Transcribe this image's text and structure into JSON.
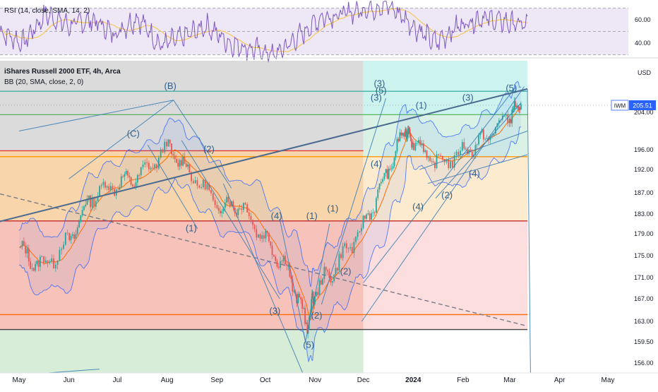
{
  "rsi_panel": {
    "legend": "RSI (14, close, SMA, 14, 2)",
    "ticks": [
      "60.00",
      "40.00"
    ],
    "tick_values": [
      60,
      40
    ],
    "bands": [
      70,
      30
    ],
    "colors": {
      "rsi": "#7e57c2",
      "sma": "#f5c64f",
      "band_fill": "#ede7f6"
    }
  },
  "price_panel": {
    "legend_title": "iShares Russell 2000 ETF, 4h, Arca",
    "legend_bb": "BB (20, SMA, close, 2, 0)",
    "currency": "USD",
    "symbol": "IWM",
    "last_price": "205.51",
    "last_price_value": 205.51,
    "price_ticks": [
      "204.00",
      "196.00",
      "192.00",
      "187.00",
      "183.00",
      "179.00",
      "175.00",
      "171.00",
      "167.00",
      "163.00",
      "159.50",
      "156.00"
    ],
    "price_tick_values": [
      204,
      196,
      192,
      187,
      183,
      179,
      175,
      171,
      167,
      163,
      159.5,
      156
    ],
    "x_labels": [
      "May",
      "Jun",
      "Jul",
      "Aug",
      "Sep",
      "Oct",
      "Nov",
      "Dec",
      "2024",
      "Feb",
      "Mar",
      "Apr",
      "May"
    ],
    "x_label_bold": "2024",
    "colors": {
      "up": "#26a69a",
      "down": "#ef5350",
      "bb": "#2962ff",
      "basis": "#ff6d00",
      "wave": "#3d7fb5"
    }
  },
  "chart_data": [
    {
      "type": "line",
      "title": "iShares Russell 2000 ETF, 4h, Arca",
      "indicator": "BB (20, SMA, close, 2, 0)",
      "x": [
        "2023-05-01",
        "2023-05-15",
        "2023-06-01",
        "2023-06-15",
        "2023-07-01",
        "2023-07-15",
        "2023-08-01",
        "2023-08-15",
        "2023-09-01",
        "2023-09-15",
        "2023-10-01",
        "2023-10-15",
        "2023-10-27",
        "2023-11-01",
        "2023-11-15",
        "2023-12-01",
        "2023-12-15",
        "2023-12-27",
        "2024-01-01",
        "2024-01-15",
        "2024-02-01",
        "2024-02-15",
        "2024-03-01",
        "2024-03-08"
      ],
      "series": [
        {
          "name": "IWM",
          "values": [
            176.0,
            173.0,
            177.5,
            186.5,
            189.0,
            190.5,
            196.5,
            191.5,
            184.5,
            185.0,
            178.0,
            172.5,
            162.0,
            168.5,
            173.5,
            180.5,
            190.5,
            200.5,
            198.0,
            193.0,
            195.5,
            198.5,
            203.5,
            205.51
          ]
        }
      ],
      "price_levels": [
        208.5,
        203.5,
        195.8,
        194.6,
        181.6,
        164.2,
        161.6
      ],
      "ylim": [
        155,
        210
      ]
    },
    {
      "type": "line",
      "title": "RSI (14, close, SMA, 14, 2)",
      "series": [
        {
          "name": "RSI",
          "values": [
            50,
            40,
            65,
            55,
            60,
            48,
            62,
            38,
            45,
            55,
            40,
            35,
            30,
            45,
            62,
            65,
            70,
            72,
            55,
            40,
            55,
            62,
            58,
            55
          ]
        }
      ],
      "bands": [
        70,
        30
      ],
      "ylim": [
        25,
        75
      ]
    }
  ],
  "annotations": {
    "waves": [
      {
        "label": "(B)",
        "date": "2023-08-03",
        "price": 209.0
      },
      {
        "label": "(C)",
        "date": "2023-07-11",
        "price": 198.8
      },
      {
        "label": "(2)",
        "date": "2023-08-27",
        "price": 195.5
      },
      {
        "label": "(1)",
        "date": "2023-08-16",
        "price": 179.5
      },
      {
        "label": "(3)",
        "date": "2023-10-07",
        "price": 164.3
      },
      {
        "label": "(4)",
        "date": "2023-10-08",
        "price": 182.0
      },
      {
        "label": "(5)",
        "date": "2023-10-28",
        "price": 158.5
      },
      {
        "label": "(2)",
        "date": "2023-11-02",
        "price": 163.5
      },
      {
        "label": "(1)",
        "date": "2023-10-30",
        "price": 182.0
      },
      {
        "label": "(1)",
        "date": "2023-11-12",
        "price": 183.5
      },
      {
        "label": "(2)",
        "date": "2023-11-20",
        "price": 171.6
      },
      {
        "label": "(3)",
        "date": "2023-12-11",
        "price": 209.5
      },
      {
        "label": "(5)",
        "date": "2023-12-12",
        "price": 208.0
      },
      {
        "label": "(3)",
        "date": "2023-12-09",
        "price": 206.5
      },
      {
        "label": "(4)",
        "date": "2023-12-09",
        "price": 192.5
      },
      {
        "label": "(1)",
        "date": "2024-01-06",
        "price": 204.8
      },
      {
        "label": "(4)",
        "date": "2024-01-04",
        "price": 183.8
      },
      {
        "label": "(2)",
        "date": "2024-01-22",
        "price": 186.0
      },
      {
        "label": "(3)",
        "date": "2024-02-04",
        "price": 206.5
      },
      {
        "label": "(4)",
        "date": "2024-02-08",
        "price": 190.5
      },
      {
        "label": "(5)",
        "date": "2024-03-02",
        "price": 208.5
      }
    ]
  }
}
